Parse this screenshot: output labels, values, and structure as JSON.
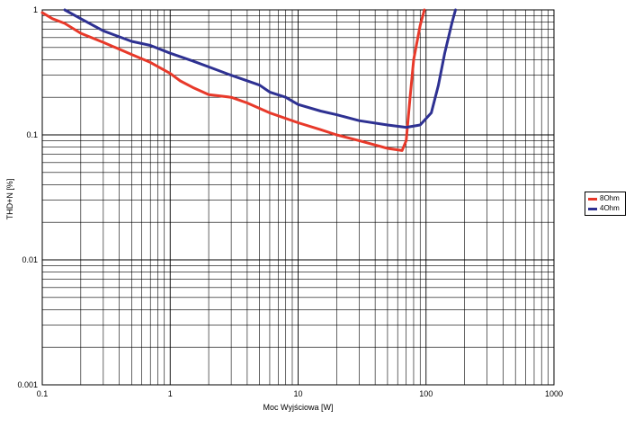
{
  "chart_data": {
    "type": "line",
    "xscale": "log",
    "yscale": "log",
    "xlim": [
      0.1,
      1000
    ],
    "ylim": [
      0.001,
      1
    ],
    "grid": true,
    "legend_position": "right",
    "xlabel": "Moc Wyjściowa [W]",
    "ylabel": "THD+N [%]",
    "xticks": [
      "0.1",
      "1",
      "10",
      "100",
      "1000"
    ],
    "yticks": [
      "0.001",
      "0.01",
      "0.1",
      "1"
    ],
    "series": [
      {
        "name": "8Ohm",
        "color": "#e8392a",
        "points": [
          [
            0.1,
            0.95
          ],
          [
            0.12,
            0.85
          ],
          [
            0.15,
            0.78
          ],
          [
            0.2,
            0.65
          ],
          [
            0.3,
            0.55
          ],
          [
            0.5,
            0.44
          ],
          [
            0.7,
            0.38
          ],
          [
            1,
            0.31
          ],
          [
            1.2,
            0.27
          ],
          [
            1.5,
            0.24
          ],
          [
            2,
            0.21
          ],
          [
            3,
            0.2
          ],
          [
            4,
            0.18
          ],
          [
            6,
            0.15
          ],
          [
            10,
            0.125
          ],
          [
            15,
            0.11
          ],
          [
            20,
            0.1
          ],
          [
            30,
            0.09
          ],
          [
            50,
            0.078
          ],
          [
            65,
            0.075
          ],
          [
            70,
            0.09
          ],
          [
            75,
            0.2
          ],
          [
            80,
            0.4
          ],
          [
            90,
            0.75
          ],
          [
            97,
            1
          ]
        ]
      },
      {
        "name": "4Ohm",
        "color": "#2e3192",
        "points": [
          [
            0.15,
            1
          ],
          [
            0.2,
            0.85
          ],
          [
            0.3,
            0.68
          ],
          [
            0.5,
            0.56
          ],
          [
            0.7,
            0.52
          ],
          [
            1,
            0.45
          ],
          [
            1.5,
            0.39
          ],
          [
            2,
            0.35
          ],
          [
            3,
            0.3
          ],
          [
            5,
            0.25
          ],
          [
            6,
            0.22
          ],
          [
            8,
            0.2
          ],
          [
            10,
            0.175
          ],
          [
            15,
            0.155
          ],
          [
            20,
            0.145
          ],
          [
            30,
            0.13
          ],
          [
            50,
            0.12
          ],
          [
            70,
            0.115
          ],
          [
            90,
            0.12
          ],
          [
            110,
            0.15
          ],
          [
            125,
            0.25
          ],
          [
            140,
            0.45
          ],
          [
            160,
            0.8
          ],
          [
            170,
            1
          ]
        ]
      }
    ]
  }
}
